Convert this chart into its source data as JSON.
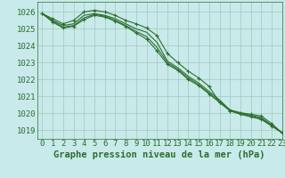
{
  "title": "Graphe pression niveau de la mer (hPa)",
  "background_color": "#c8eaea",
  "plot_bg_color": "#c8eaea",
  "grid_color": "#a0c8c0",
  "line_color": "#2d6e2d",
  "marker_color": "#2d6e2d",
  "xlim": [
    -0.5,
    23
  ],
  "ylim": [
    1018.5,
    1026.6
  ],
  "yticks": [
    1019,
    1020,
    1021,
    1022,
    1023,
    1024,
    1025,
    1026
  ],
  "xticks": [
    0,
    1,
    2,
    3,
    4,
    5,
    6,
    7,
    8,
    9,
    10,
    11,
    12,
    13,
    14,
    15,
    16,
    17,
    18,
    19,
    20,
    21,
    22,
    23
  ],
  "series": [
    {
      "y": [
        1025.9,
        1025.6,
        1025.3,
        1025.5,
        1026.0,
        1026.1,
        1026.0,
        1025.8,
        1025.5,
        1025.3,
        1025.05,
        1024.6,
        1023.55,
        1023.0,
        1022.5,
        1022.1,
        1021.6,
        1020.65,
        1020.2,
        1020.05,
        1019.95,
        1019.85,
        1019.4,
        1018.85
      ],
      "marker": true
    },
    {
      "y": [
        1025.9,
        1025.5,
        1025.2,
        1025.3,
        1025.8,
        1025.9,
        1025.8,
        1025.6,
        1025.3,
        1025.0,
        1024.8,
        1024.2,
        1023.1,
        1022.7,
        1022.2,
        1021.8,
        1021.3,
        1020.8,
        1020.2,
        1020.0,
        1019.9,
        1019.75,
        1019.3,
        1018.85
      ],
      "marker": false
    },
    {
      "y": [
        1025.9,
        1025.45,
        1025.1,
        1025.2,
        1025.65,
        1025.85,
        1025.75,
        1025.5,
        1025.2,
        1024.85,
        1024.55,
        1023.9,
        1023.0,
        1022.6,
        1022.1,
        1021.7,
        1021.2,
        1020.7,
        1020.2,
        1020.0,
        1019.85,
        1019.7,
        1019.3,
        1018.85
      ],
      "marker": false
    },
    {
      "y": [
        1025.9,
        1025.4,
        1025.05,
        1025.15,
        1025.55,
        1025.8,
        1025.7,
        1025.45,
        1025.15,
        1024.75,
        1024.4,
        1023.7,
        1022.9,
        1022.55,
        1022.0,
        1021.65,
        1021.15,
        1020.65,
        1020.15,
        1019.95,
        1019.8,
        1019.65,
        1019.25,
        1018.85
      ],
      "marker": true
    }
  ],
  "tick_fontsize": 6.5,
  "title_fontsize": 7.5
}
